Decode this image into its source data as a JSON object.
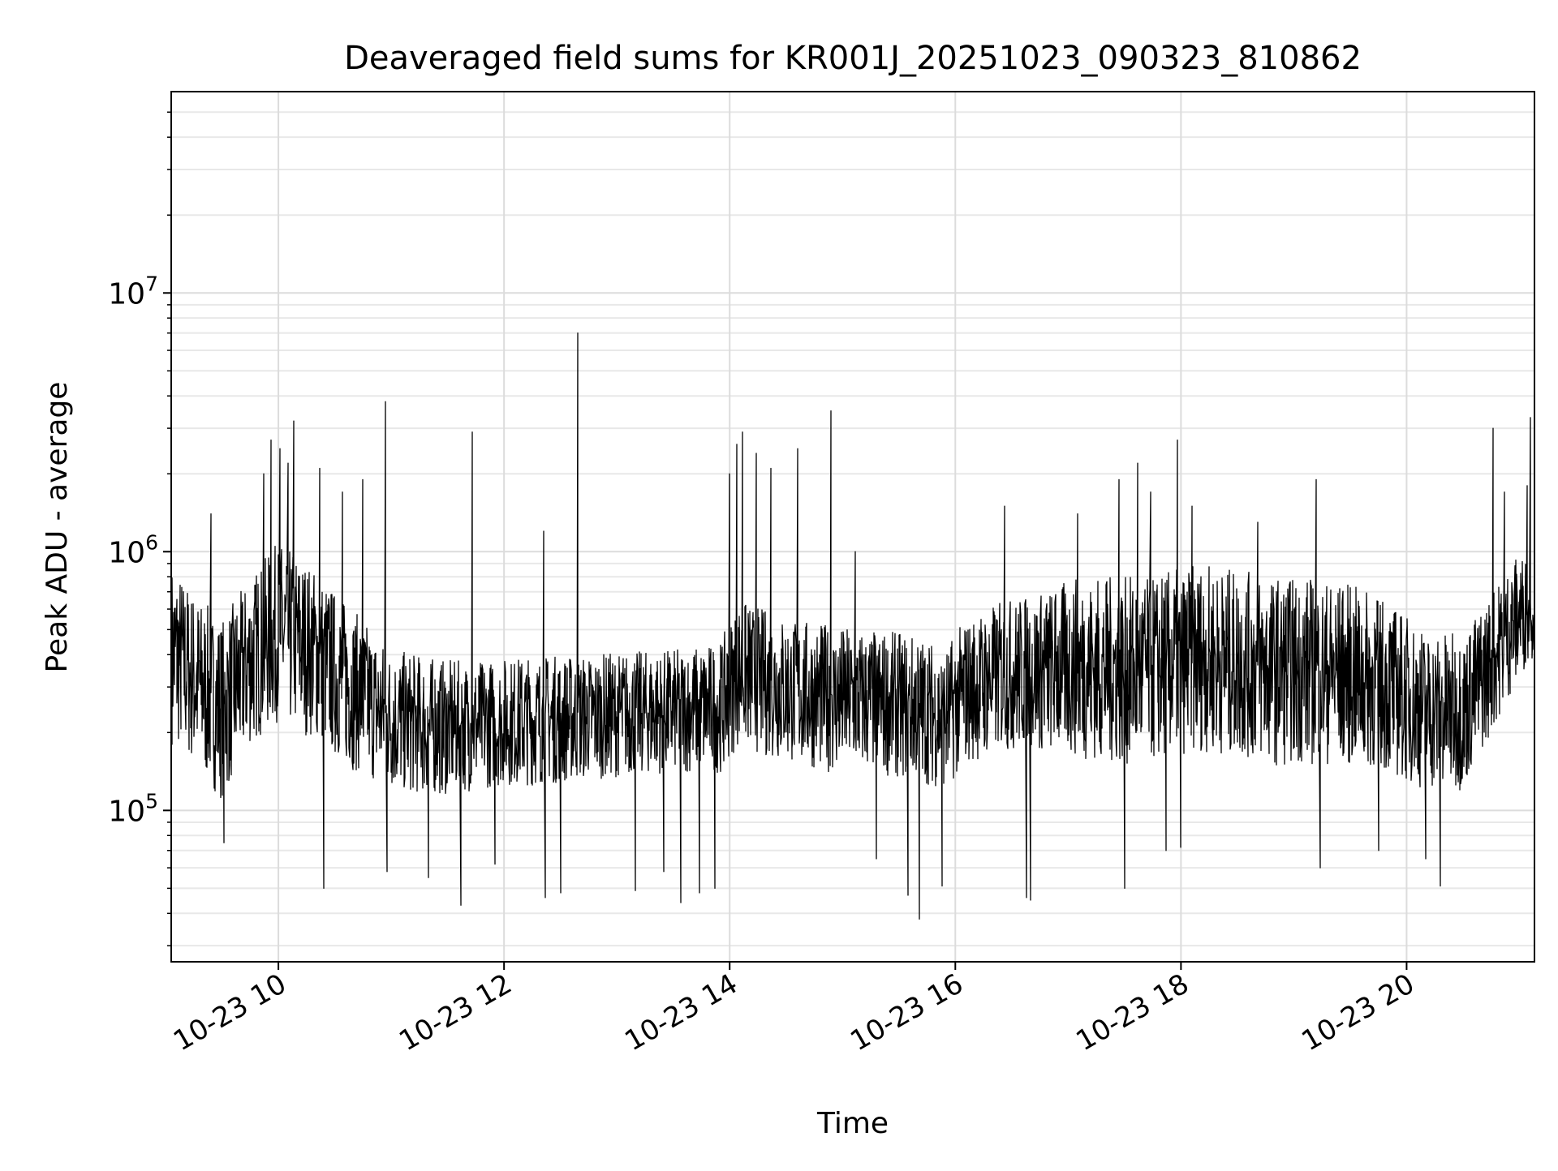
{
  "chart_data": {
    "type": "line",
    "title": "Deaveraged field sums for KR001J_20251023_090323_810862",
    "xlabel": "Time",
    "ylabel": "Peak ADU - average",
    "xlim": [
      "2025-10-23T09:03",
      "2025-10-23T21:08"
    ],
    "ylim": [
      26000,
      60000000
    ],
    "yscale": "log",
    "grid": "major and minor, light gray",
    "legend": "none",
    "line_color": "#000000",
    "x_ticks": [
      {
        "t": "2025-10-23T10:00",
        "label": "10-23 10"
      },
      {
        "t": "2025-10-23T12:00",
        "label": "10-23 12"
      },
      {
        "t": "2025-10-23T14:00",
        "label": "10-23 14"
      },
      {
        "t": "2025-10-23T16:00",
        "label": "10-23 16"
      },
      {
        "t": "2025-10-23T18:00",
        "label": "10-23 18"
      },
      {
        "t": "2025-10-23T20:00",
        "label": "10-23 20"
      }
    ],
    "y_ticks": [
      {
        "value": 100000,
        "base": "10",
        "exp": "5"
      },
      {
        "value": 1000000,
        "base": "10",
        "exp": "6"
      },
      {
        "value": 10000000,
        "base": "10",
        "exp": "7"
      }
    ],
    "series": [
      {
        "x": [
          "2025-10-23T09:05",
          "2025-10-23T09:15",
          "2025-10-23T09:30",
          "2025-10-23T09:45",
          "2025-10-23T10:00",
          "2025-10-23T10:10",
          "2025-10-23T10:20",
          "2025-10-23T10:35",
          "2025-10-23T10:50",
          "2025-10-23T11:00",
          "2025-10-23T11:15",
          "2025-10-23T11:30",
          "2025-10-23T11:45",
          "2025-10-23T12:00",
          "2025-10-23T12:20",
          "2025-10-23T12:40",
          "2025-10-23T13:00",
          "2025-10-23T13:30",
          "2025-10-23T13:55",
          "2025-10-23T14:05",
          "2025-10-23T14:20",
          "2025-10-23T14:35",
          "2025-10-23T14:55",
          "2025-10-23T15:15",
          "2025-10-23T15:40",
          "2025-10-23T15:55",
          "2025-10-23T16:05",
          "2025-10-23T16:25",
          "2025-10-23T16:45",
          "2025-10-23T17:05",
          "2025-10-23T17:25",
          "2025-10-23T17:40",
          "2025-10-23T17:55",
          "2025-10-23T18:10",
          "2025-10-23T18:30",
          "2025-10-23T18:50",
          "2025-10-23T19:10",
          "2025-10-23T19:30",
          "2025-10-23T19:50",
          "2025-10-23T20:10",
          "2025-10-23T20:30",
          "2025-10-23T20:45",
          "2025-10-23T21:00",
          "2025-10-23T21:08"
        ],
        "y": [
          400000,
          350000,
          250000,
          360000,
          450000,
          430000,
          420000,
          320000,
          260000,
          230000,
          220000,
          210000,
          220000,
          230000,
          235000,
          240000,
          245000,
          250000,
          260000,
          330000,
          320000,
          310000,
          280000,
          270000,
          260000,
          240000,
          280000,
          320000,
          330000,
          340000,
          340000,
          330000,
          350000,
          380000,
          370000,
          360000,
          350000,
          330000,
          300000,
          260000,
          270000,
          380000,
          600000,
          650000
        ],
        "band_low": [
          180000,
          150000,
          110000,
          180000,
          220000,
          200000,
          190000,
          150000,
          130000,
          120000,
          115000,
          115000,
          120000,
          125000,
          125000,
          130000,
          135000,
          140000,
          140000,
          180000,
          160000,
          150000,
          140000,
          140000,
          130000,
          120000,
          150000,
          170000,
          170000,
          160000,
          150000,
          150000,
          160000,
          170000,
          160000,
          150000,
          150000,
          150000,
          140000,
          120000,
          120000,
          200000,
          330000,
          400000
        ],
        "band_high": [
          900000,
          700000,
          550000,
          800000,
          1100000,
          1000000,
          850000,
          650000,
          500000,
          420000,
          400000,
          380000,
          380000,
          390000,
          400000,
          400000,
          410000,
          420000,
          450000,
          650000,
          600000,
          550000,
          520000,
          500000,
          480000,
          430000,
          550000,
          650000,
          700000,
          800000,
          800000,
          800000,
          850000,
          900000,
          850000,
          800000,
          800000,
          750000,
          650000,
          500000,
          480000,
          700000,
          1000000,
          900000
        ],
        "spikes": [
          {
            "t": "2025-10-23T09:03",
            "y": 1500000
          },
          {
            "t": "2025-10-23T09:24",
            "y": 1400000
          },
          {
            "t": "2025-10-23T09:52",
            "y": 2000000
          },
          {
            "t": "2025-10-23T09:56",
            "y": 2700000
          },
          {
            "t": "2025-10-23T10:01",
            "y": 2500000
          },
          {
            "t": "2025-10-23T10:05",
            "y": 2200000
          },
          {
            "t": "2025-10-23T10:08",
            "y": 3200000
          },
          {
            "t": "2025-10-23T10:22",
            "y": 2100000
          },
          {
            "t": "2025-10-23T10:34",
            "y": 1700000
          },
          {
            "t": "2025-10-23T10:45",
            "y": 1900000
          },
          {
            "t": "2025-10-23T10:57",
            "y": 3800000
          },
          {
            "t": "2025-10-23T11:43",
            "y": 2900000
          },
          {
            "t": "2025-10-23T12:21",
            "y": 1200000
          },
          {
            "t": "2025-10-23T12:39",
            "y": 7000000
          },
          {
            "t": "2025-10-23T14:00",
            "y": 2000000
          },
          {
            "t": "2025-10-23T14:04",
            "y": 2600000
          },
          {
            "t": "2025-10-23T14:07",
            "y": 2900000
          },
          {
            "t": "2025-10-23T14:14",
            "y": 2400000
          },
          {
            "t": "2025-10-23T14:22",
            "y": 2100000
          },
          {
            "t": "2025-10-23T14:36",
            "y": 2500000
          },
          {
            "t": "2025-10-23T14:54",
            "y": 3500000
          },
          {
            "t": "2025-10-23T15:07",
            "y": 1000000
          },
          {
            "t": "2025-10-23T16:26",
            "y": 1500000
          },
          {
            "t": "2025-10-23T17:05",
            "y": 1400000
          },
          {
            "t": "2025-10-23T17:27",
            "y": 1900000
          },
          {
            "t": "2025-10-23T17:37",
            "y": 2200000
          },
          {
            "t": "2025-10-23T17:44",
            "y": 1700000
          },
          {
            "t": "2025-10-23T17:58",
            "y": 2700000
          },
          {
            "t": "2025-10-23T18:06",
            "y": 1500000
          },
          {
            "t": "2025-10-23T18:41",
            "y": 1300000
          },
          {
            "t": "2025-10-23T19:12",
            "y": 1900000
          },
          {
            "t": "2025-10-23T20:46",
            "y": 3000000
          },
          {
            "t": "2025-10-23T20:52",
            "y": 1700000
          },
          {
            "t": "2025-10-23T21:04",
            "y": 1800000
          },
          {
            "t": "2025-10-23T21:06",
            "y": 3300000
          }
        ],
        "dips": [
          {
            "t": "2025-10-23T09:31",
            "y": 75000
          },
          {
            "t": "2025-10-23T10:24",
            "y": 50000
          },
          {
            "t": "2025-10-23T10:58",
            "y": 58000
          },
          {
            "t": "2025-10-23T11:20",
            "y": 55000
          },
          {
            "t": "2025-10-23T11:37",
            "y": 43000
          },
          {
            "t": "2025-10-23T11:55",
            "y": 62000
          },
          {
            "t": "2025-10-23T12:22",
            "y": 46000
          },
          {
            "t": "2025-10-23T12:30",
            "y": 48000
          },
          {
            "t": "2025-10-23T13:10",
            "y": 49000
          },
          {
            "t": "2025-10-23T13:25",
            "y": 58000
          },
          {
            "t": "2025-10-23T13:34",
            "y": 44000
          },
          {
            "t": "2025-10-23T13:44",
            "y": 48000
          },
          {
            "t": "2025-10-23T13:52",
            "y": 50000
          },
          {
            "t": "2025-10-23T15:18",
            "y": 65000
          },
          {
            "t": "2025-10-23T15:35",
            "y": 47000
          },
          {
            "t": "2025-10-23T15:41",
            "y": 38000
          },
          {
            "t": "2025-10-23T15:53",
            "y": 51000
          },
          {
            "t": "2025-10-23T16:38",
            "y": 46000
          },
          {
            "t": "2025-10-23T16:40",
            "y": 45000
          },
          {
            "t": "2025-10-23T17:30",
            "y": 50000
          },
          {
            "t": "2025-10-23T17:52",
            "y": 70000
          },
          {
            "t": "2025-10-23T18:00",
            "y": 72000
          },
          {
            "t": "2025-10-23T19:14",
            "y": 60000
          },
          {
            "t": "2025-10-23T19:45",
            "y": 70000
          },
          {
            "t": "2025-10-23T20:10",
            "y": 65000
          },
          {
            "t": "2025-10-23T20:18",
            "y": 51000
          }
        ]
      }
    ]
  }
}
